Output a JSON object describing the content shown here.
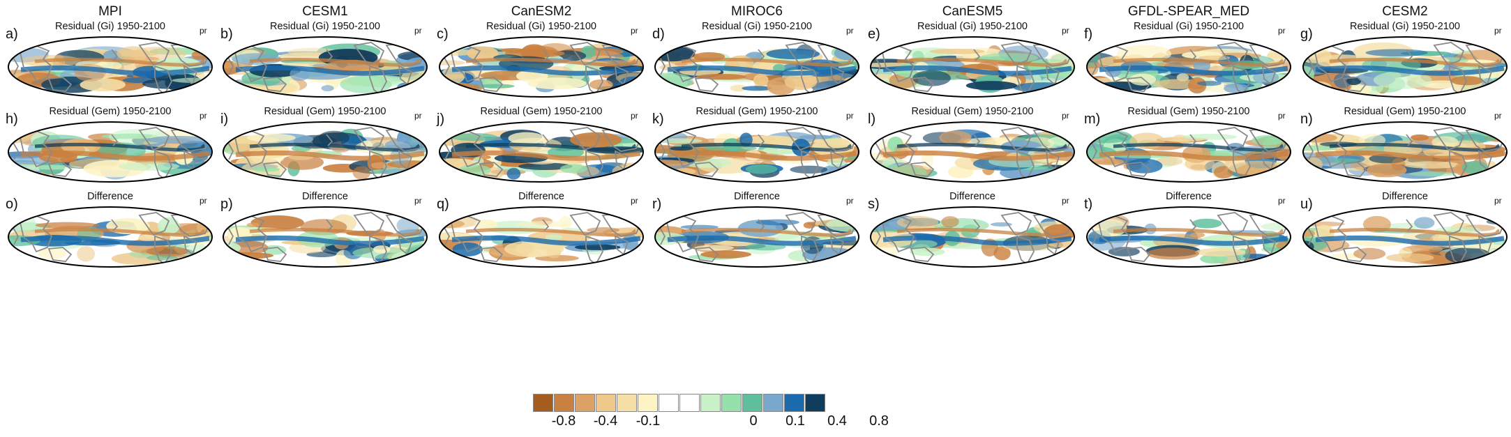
{
  "models": [
    "MPI",
    "CESM1",
    "CanESM2",
    "MIROC6",
    "CanESM5",
    "GFDL-SPEAR_MED",
    "CESM2"
  ],
  "row_titles": [
    "Residual (Gi) 1950-2100",
    "Residual (Gem) 1950-2100",
    "Difference"
  ],
  "panel_letters": [
    "a)",
    "b)",
    "c)",
    "d)",
    "e)",
    "f)",
    "g)",
    "h)",
    "i)",
    "j)",
    "k)",
    "l)",
    "m)",
    "n)",
    "o)",
    "p)",
    "q)",
    "r)",
    "s)",
    "t)",
    "u)"
  ],
  "variable": "pr",
  "colorbar": {
    "colors": [
      "#a65c1f",
      "#c98040",
      "#dba165",
      "#eec98b",
      "#f5dfa6",
      "#fdf4c6",
      "#ffffff",
      "#ffffff",
      "#c9f2c9",
      "#96e0ac",
      "#5fbf9d",
      "#7aa8cc",
      "#1a6aad",
      "#0f3d5e"
    ],
    "labels": [
      "-0.8",
      "-0.4",
      "-0.1",
      "0",
      "0.1",
      "0.4",
      "0.8"
    ]
  },
  "palette": {
    "coast": "#8a8a8a",
    "frame": "#000000"
  }
}
